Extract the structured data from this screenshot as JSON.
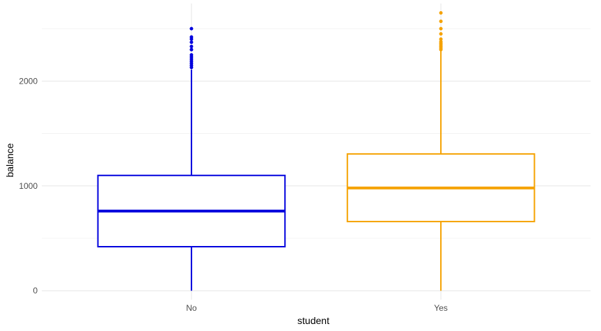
{
  "chart_data": {
    "type": "boxplot",
    "xlabel": "student",
    "ylabel": "balance",
    "categories": [
      "No",
      "Yes"
    ],
    "ylim": [
      -85,
      2740
    ],
    "yticks": [
      0,
      1000,
      2000
    ],
    "grid": true,
    "legend": "none",
    "boxes": [
      {
        "category": "No",
        "color": "#0000dd",
        "whisker_low": 0,
        "q1": 420,
        "median": 760,
        "q3": 1100,
        "whisker_high": 2110,
        "outliers": [
          2130,
          2150,
          2170,
          2190,
          2210,
          2230,
          2250,
          2300,
          2330,
          2370,
          2400,
          2420,
          2500
        ]
      },
      {
        "category": "Yes",
        "color": "#f5a200",
        "whisker_low": 0,
        "q1": 660,
        "median": 980,
        "q3": 1305,
        "whisker_high": 2285,
        "outliers": [
          2300,
          2315,
          2330,
          2345,
          2360,
          2375,
          2400,
          2450,
          2500,
          2570,
          2650
        ]
      }
    ]
  }
}
